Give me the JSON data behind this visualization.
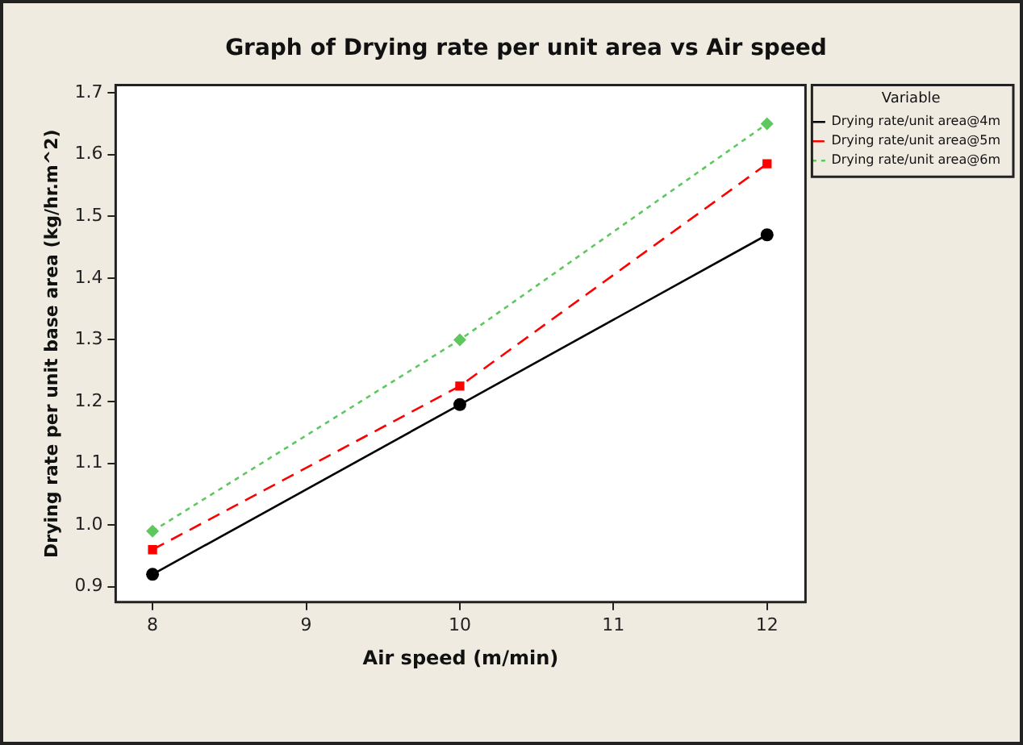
{
  "chart_data": {
    "type": "line",
    "title": "Graph of Drying rate per unit area vs Air speed",
    "xlabel": "Air speed (m/min)",
    "ylabel": "Drying rate per unit base area (kg/hr.m^2)",
    "legend_title": "Variable",
    "legend": "top right",
    "grid": false,
    "x": [
      8,
      10,
      12
    ],
    "xlim": [
      7.76,
      12.25
    ],
    "xticks": [
      8,
      9,
      10,
      11,
      12
    ],
    "ylim": [
      0.875,
      1.7125
    ],
    "yticks": [
      {
        "value": 0.9,
        "label": "0.9"
      },
      {
        "value": 1.0,
        "label": "1.0"
      },
      {
        "value": 1.1,
        "label": "1.1"
      },
      {
        "value": 1.2,
        "label": "1.2"
      },
      {
        "value": 1.3,
        "label": "1.3"
      },
      {
        "value": 1.4,
        "label": "1.4"
      },
      {
        "value": 1.5,
        "label": "1.5"
      },
      {
        "value": 1.6,
        "label": "1.6"
      },
      {
        "value": 1.7,
        "label": "1.7"
      }
    ],
    "series": [
      {
        "name": "Drying rate/unit area@4m",
        "color": "#000000",
        "values": [
          0.92,
          1.195,
          1.47
        ],
        "marker": "circle",
        "line_style": "solid"
      },
      {
        "name": "Drying rate/unit area@5m",
        "color": "#ff0000",
        "values": [
          0.96,
          1.225,
          1.585
        ],
        "marker": "square",
        "line_style": "dashed"
      },
      {
        "name": "Drying rate/unit area@6m",
        "color": "#5ec85e",
        "values": [
          0.99,
          1.3,
          1.65
        ],
        "marker": "diamond",
        "line_style": "dotted"
      }
    ]
  }
}
